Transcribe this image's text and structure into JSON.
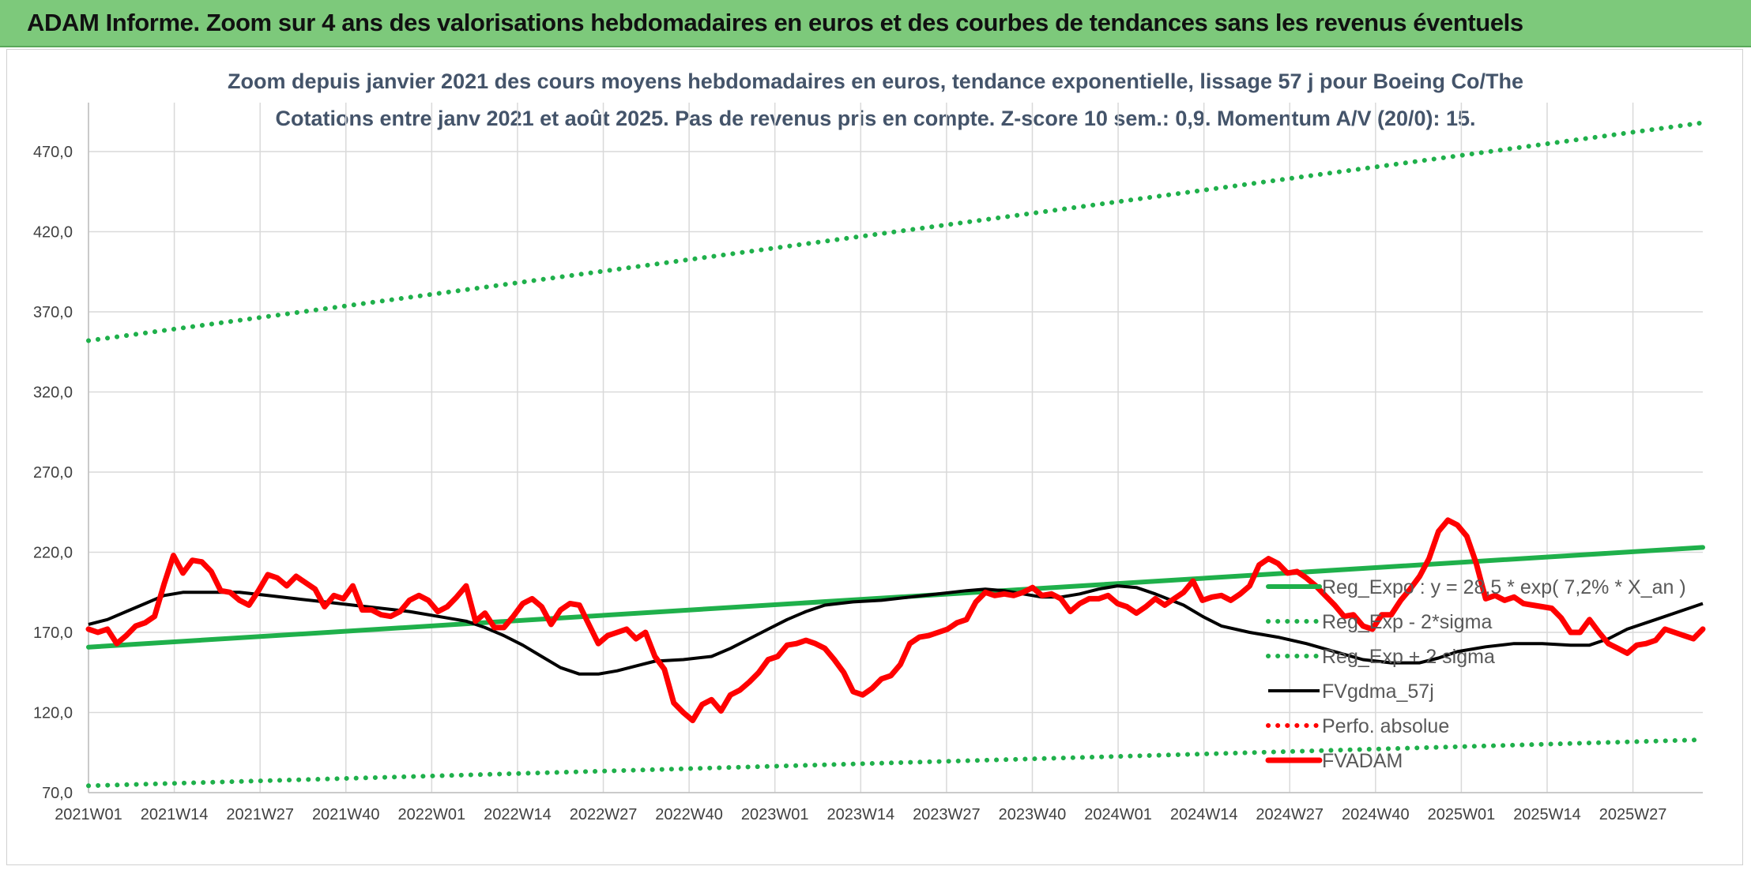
{
  "header": {
    "title": "ADAM Informe. Zoom sur 4 ans des valorisations hebdomadaires en euros et des courbes de tendances sans les revenus éventuels"
  },
  "chart_data": {
    "type": "line",
    "title_line1": "Zoom depuis janvier 2021 des cours moyens hebdomadaires en euros, tendance exponentielle, lissage 57 j pour Boeing Co/The",
    "title_line2": "Cotations entre janv 2021 et août 2025. Pas de revenus pris en compte. Z-score 10 sem.: 0,9. Momentum A/V (20/0): 15.",
    "ylim": [
      70,
      490
    ],
    "y_ticks": [
      "70,0",
      "120,0",
      "170,0",
      "220,0",
      "270,0",
      "320,0",
      "370,0",
      "420,0",
      "470,0"
    ],
    "x_ticks": [
      "2021W01",
      "2021W14",
      "2021W27",
      "2021W40",
      "2022W01",
      "2022W14",
      "2022W27",
      "2022W40",
      "2023W01",
      "2023W14",
      "2023W27",
      "2023W40",
      "2024W01",
      "2024W14",
      "2024W27",
      "2024W40",
      "2025W01",
      "2025W14",
      "2025W27"
    ],
    "grid": true,
    "legend_position": "right",
    "series": [
      {
        "name": "Reg_Expo : y = 28,5 * exp( 7,2% *  X_an )",
        "color": "#1fb04b",
        "style": "solid",
        "points": [
          [
            0,
            160.8
          ],
          [
            238,
            223.0
          ]
        ]
      },
      {
        "name": "Reg_Exp - 2*sigma",
        "color": "#1fb04b",
        "style": "dotted",
        "points": [
          [
            0,
            74.3
          ],
          [
            238,
            103.0
          ]
        ]
      },
      {
        "name": "Reg_Exp + 2 sigma",
        "color": "#1fb04b",
        "style": "dotted",
        "points": [
          [
            0,
            352.0
          ],
          [
            238,
            488.0
          ]
        ]
      },
      {
        "name": "FVgdma_57j",
        "color": "#000000",
        "style": "solid",
        "points": [
          [
            0,
            175
          ],
          [
            4,
            178
          ],
          [
            8,
            183
          ],
          [
            12,
            188
          ],
          [
            16,
            193
          ],
          [
            20,
            195
          ],
          [
            26,
            195
          ],
          [
            32,
            195
          ],
          [
            38,
            193
          ],
          [
            44,
            191
          ],
          [
            50,
            189
          ],
          [
            56,
            187
          ],
          [
            62,
            185
          ],
          [
            68,
            183
          ],
          [
            74,
            180
          ],
          [
            80,
            177
          ],
          [
            84,
            173
          ],
          [
            88,
            168
          ],
          [
            92,
            162
          ],
          [
            96,
            155
          ],
          [
            100,
            148
          ],
          [
            104,
            144
          ],
          [
            108,
            144
          ],
          [
            112,
            146
          ],
          [
            116,
            149
          ],
          [
            120,
            152
          ],
          [
            126,
            153
          ],
          [
            132,
            155
          ],
          [
            136,
            160
          ],
          [
            140,
            166
          ],
          [
            144,
            172
          ],
          [
            148,
            178
          ],
          [
            152,
            183
          ],
          [
            156,
            187
          ],
          [
            162,
            189
          ],
          [
            168,
            190
          ],
          [
            174,
            192
          ],
          [
            180,
            194
          ],
          [
            186,
            196
          ],
          [
            190,
            197
          ],
          [
            194,
            196
          ],
          [
            198,
            194
          ],
          [
            202,
            192
          ],
          [
            206,
            192
          ],
          [
            210,
            194
          ],
          [
            214,
            197
          ],
          [
            218,
            199
          ],
          [
            222,
            198
          ],
          [
            226,
            194
          ],
          [
            232,
            187
          ],
          [
            236,
            180
          ],
          [
            240,
            174
          ],
          [
            246,
            170
          ],
          [
            252,
            167
          ],
          [
            258,
            163
          ],
          [
            264,
            158
          ],
          [
            270,
            153
          ],
          [
            276,
            151
          ],
          [
            282,
            151
          ],
          [
            286,
            154
          ],
          [
            290,
            158
          ],
          [
            296,
            161
          ],
          [
            302,
            163
          ],
          [
            308,
            163
          ],
          [
            314,
            162
          ],
          [
            318,
            162
          ],
          [
            322,
            166
          ],
          [
            326,
            172
          ],
          [
            332,
            178
          ],
          [
            338,
            184
          ],
          [
            342,
            188
          ]
        ],
        "x_scale": "raw"
      },
      {
        "name": "Perfo. absolue",
        "color": "#ff0000",
        "style": "dotted",
        "points": []
      },
      {
        "name": "FVADAM",
        "color": "#ff0000",
        "style": "solid",
        "points": [
          [
            0,
            172
          ],
          [
            2,
            170
          ],
          [
            4,
            172
          ],
          [
            6,
            163
          ],
          [
            8,
            168
          ],
          [
            10,
            174
          ],
          [
            12,
            176
          ],
          [
            14,
            180
          ],
          [
            16,
            200
          ],
          [
            18,
            218
          ],
          [
            20,
            207
          ],
          [
            22,
            215
          ],
          [
            24,
            214
          ],
          [
            26,
            208
          ],
          [
            28,
            196
          ],
          [
            30,
            195
          ],
          [
            32,
            190
          ],
          [
            34,
            187
          ],
          [
            36,
            196
          ],
          [
            38,
            206
          ],
          [
            40,
            204
          ],
          [
            42,
            199
          ],
          [
            44,
            205
          ],
          [
            46,
            201
          ],
          [
            48,
            197
          ],
          [
            50,
            186
          ],
          [
            52,
            193
          ],
          [
            54,
            191
          ],
          [
            56,
            199
          ],
          [
            58,
            184
          ],
          [
            60,
            184
          ],
          [
            62,
            181
          ],
          [
            64,
            180
          ],
          [
            66,
            183
          ],
          [
            68,
            190
          ],
          [
            70,
            193
          ],
          [
            72,
            190
          ],
          [
            74,
            183
          ],
          [
            76,
            186
          ],
          [
            78,
            192
          ],
          [
            80,
            199
          ],
          [
            82,
            177
          ],
          [
            84,
            182
          ],
          [
            86,
            173
          ],
          [
            88,
            173
          ],
          [
            90,
            180
          ],
          [
            92,
            188
          ],
          [
            94,
            191
          ],
          [
            96,
            186
          ],
          [
            98,
            175
          ],
          [
            100,
            184
          ],
          [
            102,
            188
          ],
          [
            104,
            187
          ],
          [
            106,
            175
          ],
          [
            108,
            163
          ],
          [
            110,
            168
          ],
          [
            112,
            170
          ],
          [
            114,
            172
          ],
          [
            116,
            166
          ],
          [
            118,
            170
          ],
          [
            120,
            155
          ],
          [
            122,
            147
          ],
          [
            124,
            126
          ],
          [
            126,
            120
          ],
          [
            128,
            115
          ],
          [
            130,
            125
          ],
          [
            132,
            128
          ],
          [
            134,
            121
          ],
          [
            136,
            131
          ],
          [
            138,
            134
          ],
          [
            140,
            139
          ],
          [
            142,
            145
          ],
          [
            144,
            153
          ],
          [
            146,
            155
          ],
          [
            148,
            162
          ],
          [
            150,
            163
          ],
          [
            152,
            165
          ],
          [
            154,
            163
          ],
          [
            156,
            160
          ],
          [
            158,
            153
          ],
          [
            160,
            145
          ],
          [
            162,
            133
          ],
          [
            164,
            131
          ],
          [
            166,
            135
          ],
          [
            168,
            141
          ],
          [
            170,
            143
          ],
          [
            172,
            150
          ],
          [
            174,
            163
          ],
          [
            176,
            167
          ],
          [
            178,
            168
          ],
          [
            180,
            170
          ],
          [
            182,
            172
          ],
          [
            184,
            176
          ],
          [
            186,
            178
          ],
          [
            188,
            189
          ],
          [
            190,
            195
          ],
          [
            192,
            193
          ],
          [
            194,
            194
          ],
          [
            196,
            193
          ],
          [
            198,
            195
          ],
          [
            200,
            198
          ],
          [
            202,
            193
          ],
          [
            204,
            194
          ],
          [
            206,
            191
          ],
          [
            208,
            183
          ],
          [
            210,
            188
          ],
          [
            212,
            191
          ],
          [
            214,
            191
          ],
          [
            216,
            193
          ],
          [
            218,
            188
          ],
          [
            220,
            186
          ],
          [
            222,
            182
          ],
          [
            224,
            186
          ],
          [
            226,
            191
          ],
          [
            228,
            187
          ],
          [
            230,
            191
          ],
          [
            232,
            195
          ],
          [
            234,
            202
          ],
          [
            236,
            190
          ],
          [
            238,
            192
          ],
          [
            240,
            193
          ],
          [
            242,
            190
          ],
          [
            244,
            194
          ],
          [
            246,
            199
          ],
          [
            248,
            212
          ],
          [
            250,
            216
          ],
          [
            252,
            213
          ],
          [
            254,
            207
          ],
          [
            256,
            208
          ],
          [
            258,
            204
          ],
          [
            260,
            199
          ],
          [
            262,
            193
          ],
          [
            264,
            187
          ],
          [
            266,
            180
          ],
          [
            268,
            181
          ],
          [
            270,
            174
          ],
          [
            272,
            172
          ],
          [
            274,
            181
          ],
          [
            276,
            181
          ],
          [
            278,
            190
          ],
          [
            280,
            197
          ],
          [
            282,
            205
          ],
          [
            284,
            216
          ],
          [
            286,
            233
          ],
          [
            288,
            240
          ],
          [
            290,
            237
          ],
          [
            292,
            230
          ],
          [
            294,
            213
          ],
          [
            296,
            191
          ],
          [
            298,
            193
          ],
          [
            300,
            190
          ],
          [
            302,
            192
          ],
          [
            304,
            188
          ],
          [
            306,
            187
          ],
          [
            308,
            186
          ],
          [
            310,
            185
          ],
          [
            312,
            179
          ],
          [
            314,
            170
          ],
          [
            316,
            170
          ],
          [
            318,
            178
          ],
          [
            320,
            170
          ],
          [
            322,
            163
          ],
          [
            324,
            160
          ],
          [
            326,
            157
          ],
          [
            328,
            162
          ],
          [
            330,
            163
          ],
          [
            332,
            165
          ],
          [
            334,
            172
          ],
          [
            336,
            170
          ],
          [
            338,
            168
          ],
          [
            340,
            166
          ],
          [
            342,
            172
          ]
        ],
        "x_scale": "raw"
      }
    ]
  }
}
